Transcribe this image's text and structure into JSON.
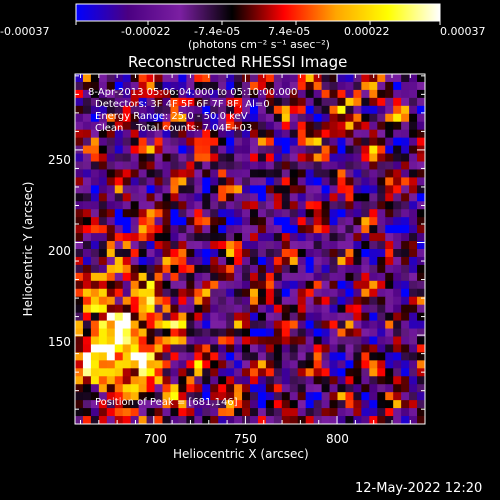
{
  "colorbar": {
    "tick_labels": [
      "-0.00037",
      "-0.00022",
      "-7.4e-05",
      "7.4e-05",
      "0.00022",
      "0.00037"
    ],
    "unit_label": "(photons cm⁻² s⁻¹ asec⁻²)",
    "range": [
      -0.00037,
      0.00037
    ],
    "colormap": [
      "#0000ff",
      "#4b0082",
      "#7b1fa2",
      "#000000",
      "#ff0000",
      "#ffa500",
      "#ffff00",
      "#ffffff"
    ]
  },
  "chart_data": {
    "type": "heatmap",
    "title": "Reconstructed RHESSI Image",
    "xlabel": "Heliocentric X (arcsec)",
    "ylabel": "Heliocentric Y (arcsec)",
    "xlim": [
      657,
      848
    ],
    "ylim": [
      102,
      291
    ],
    "x_ticks": [
      700,
      750,
      800
    ],
    "y_ticks": [
      150,
      200,
      250
    ],
    "grid": false,
    "peak": {
      "x": 681,
      "y": 146
    },
    "annotations": [
      "8-Apr-2013 05:06:04.000 to 05:10:00.000",
      "Detectors: 3F 4F 5F 6F 7F 8F, Al=0",
      "Energy Range: 25.0 - 50.0 keV",
      "Clean    Total counts: 7.04E+03"
    ],
    "peak_label": "Position of Peak = [681,146]"
  },
  "footer": {
    "timestamp": "12-May-2022 12:20"
  }
}
